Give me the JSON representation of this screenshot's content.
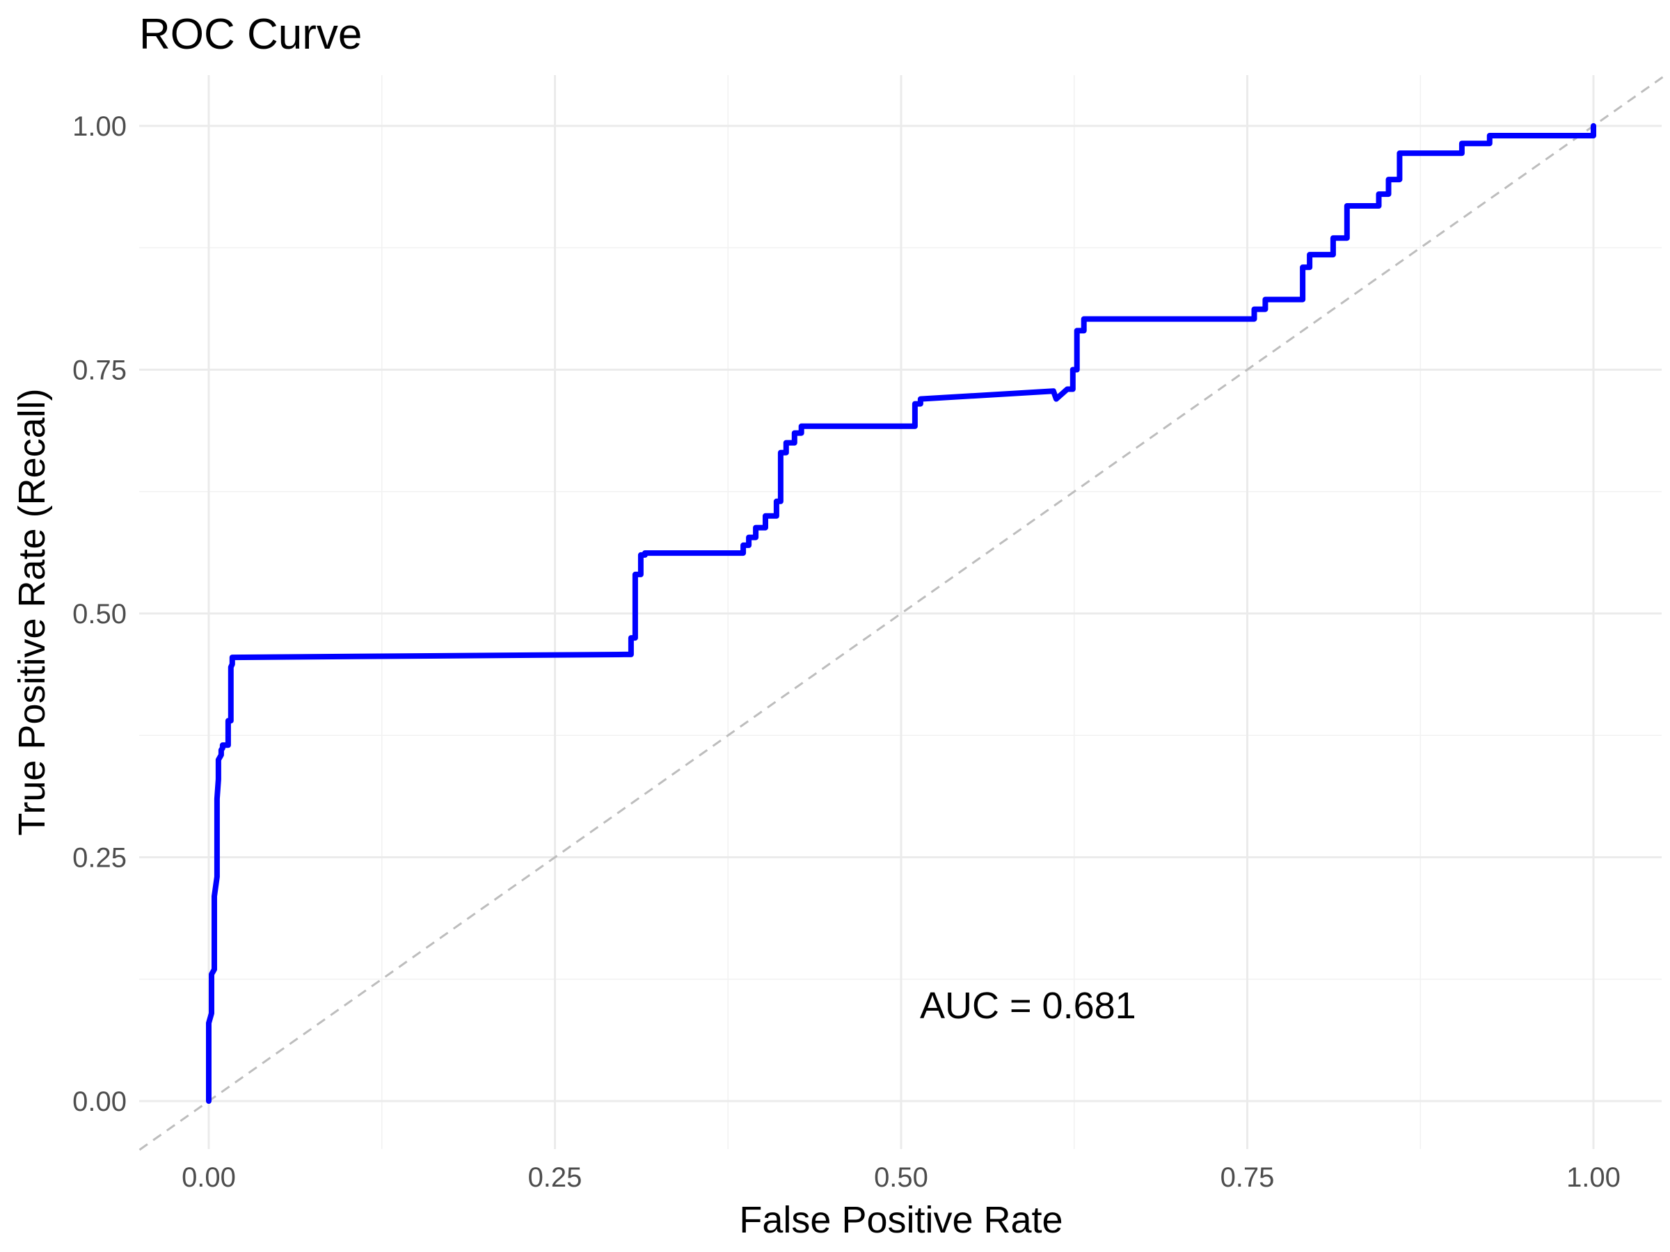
{
  "chart_data": {
    "type": "line",
    "title": "ROC Curve",
    "xlabel": "False Positive Rate",
    "ylabel": "True Positive Rate (Recall)",
    "xlim": [
      -0.05,
      1.05
    ],
    "ylim": [
      -0.05,
      1.05
    ],
    "x_ticks": [
      0.0,
      0.25,
      0.5,
      0.75,
      1.0
    ],
    "x_tick_labels": [
      "0.00",
      "0.25",
      "0.50",
      "0.75",
      "1.00"
    ],
    "y_ticks": [
      0.0,
      0.25,
      0.5,
      0.75,
      1.0
    ],
    "y_tick_labels": [
      "0.00",
      "0.25",
      "0.50",
      "0.75",
      "1.00"
    ],
    "grid": true,
    "annotation": {
      "text": "AUC = 0.681",
      "x": 0.6,
      "y": 0.1
    },
    "reference_line": {
      "style": "dashed",
      "color": "#bdbdbd",
      "from": [
        -0.05,
        -0.05
      ],
      "to": [
        1.05,
        1.05
      ]
    },
    "series": [
      {
        "color": "#0000ff",
        "x": [
          0.0,
          0.0,
          0.002,
          0.002,
          0.004,
          0.004,
          0.006,
          0.006,
          0.007,
          0.007,
          0.009,
          0.009,
          0.01,
          0.01,
          0.014,
          0.014,
          0.016,
          0.016,
          0.017,
          0.017,
          0.3,
          0.305,
          0.305,
          0.308,
          0.308,
          0.312,
          0.312,
          0.315,
          0.315,
          0.386,
          0.386,
          0.39,
          0.39,
          0.395,
          0.395,
          0.402,
          0.402,
          0.41,
          0.41,
          0.413,
          0.413,
          0.417,
          0.417,
          0.423,
          0.423,
          0.428,
          0.428,
          0.51,
          0.51,
          0.514,
          0.514,
          0.61,
          0.612,
          0.62,
          0.624,
          0.624,
          0.627,
          0.627,
          0.632,
          0.632,
          0.755,
          0.755,
          0.763,
          0.763,
          0.79,
          0.79,
          0.795,
          0.795,
          0.812,
          0.812,
          0.822,
          0.822,
          0.845,
          0.845,
          0.852,
          0.852,
          0.86,
          0.86,
          0.905,
          0.905,
          0.925,
          0.925,
          1.0,
          1.0
        ],
        "y": [
          0.0,
          0.08,
          0.09,
          0.13,
          0.135,
          0.21,
          0.23,
          0.31,
          0.33,
          0.35,
          0.355,
          0.36,
          0.362,
          0.365,
          0.365,
          0.39,
          0.39,
          0.445,
          0.448,
          0.455,
          0.458,
          0.458,
          0.475,
          0.475,
          0.54,
          0.54,
          0.56,
          0.56,
          0.562,
          0.562,
          0.57,
          0.57,
          0.578,
          0.578,
          0.588,
          0.588,
          0.6,
          0.6,
          0.615,
          0.615,
          0.665,
          0.665,
          0.675,
          0.675,
          0.685,
          0.685,
          0.692,
          0.692,
          0.715,
          0.715,
          0.72,
          0.728,
          0.72,
          0.73,
          0.73,
          0.75,
          0.75,
          0.79,
          0.79,
          0.802,
          0.802,
          0.812,
          0.812,
          0.822,
          0.822,
          0.855,
          0.855,
          0.868,
          0.868,
          0.885,
          0.885,
          0.918,
          0.918,
          0.93,
          0.93,
          0.945,
          0.945,
          0.972,
          0.972,
          0.982,
          0.982,
          0.99,
          0.99,
          1.0
        ]
      }
    ]
  }
}
